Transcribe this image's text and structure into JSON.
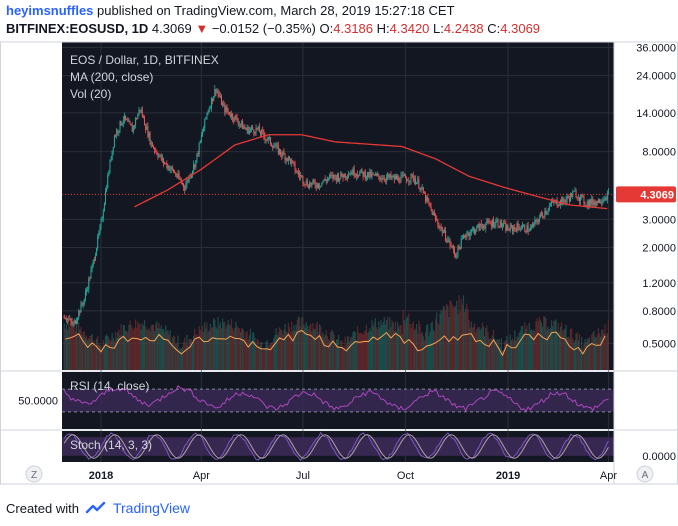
{
  "header": {
    "user": "heyimsnuffles",
    "published_text": "published on TradingView.com, March 28, 2019 15:27:18 CET",
    "symbol": "BITFINEX:EOSUSD, 1D",
    "last": "4.3069",
    "arrow": "▼",
    "change": "−0.0152 (−0.35%)",
    "o_label": "O:",
    "o": "4.3186",
    "h_label": "H:",
    "h": "4.3420",
    "l_label": "L:",
    "l": "4.2438",
    "c_label": "C:",
    "c": "4.3069"
  },
  "legend": {
    "title": "EOS / Dollar, 1D, BITFINEX",
    "ma": "MA (200, close)",
    "vol": "Vol (20)",
    "rsi": "RSI (14, close)",
    "stoch": "Stoch (14, 3, 3)"
  },
  "footer": {
    "created_with": "Created with",
    "brand": "TradingView"
  },
  "chart_data": {
    "type": "candlestick",
    "scale": "log",
    "price_ticks": [
      "36.0000",
      "24.0000",
      "14.0000",
      "8.0000",
      "4.3069",
      "3.0000",
      "2.0000",
      "1.2000",
      "0.8000",
      "0.5000"
    ],
    "price_tick_values": [
      36,
      24,
      14,
      8,
      3,
      2,
      1.2,
      0.8,
      0.5
    ],
    "last_price": 4.3069,
    "last_price_label": "4.3069",
    "x_labels": [
      "2018",
      "Apr",
      "Jul",
      "Oct",
      "2019",
      "Apr"
    ],
    "x_label_bold": [
      true,
      false,
      false,
      false,
      true,
      false
    ],
    "x_label_day": [
      0,
      90,
      181,
      273,
      365,
      455
    ],
    "x_range_days": [
      -35,
      460
    ],
    "price_anchors": [
      [
        -33,
        0.75
      ],
      [
        -25,
        0.65
      ],
      [
        -15,
        0.95
      ],
      [
        -8,
        1.5
      ],
      [
        0,
        2.8
      ],
      [
        5,
        5
      ],
      [
        12,
        10
      ],
      [
        20,
        13
      ],
      [
        28,
        11
      ],
      [
        35,
        15
      ],
      [
        45,
        9
      ],
      [
        55,
        7
      ],
      [
        65,
        6
      ],
      [
        75,
        4.8
      ],
      [
        85,
        7
      ],
      [
        95,
        14
      ],
      [
        103,
        20
      ],
      [
        110,
        15
      ],
      [
        120,
        13
      ],
      [
        130,
        11
      ],
      [
        140,
        11
      ],
      [
        150,
        9.5
      ],
      [
        160,
        8
      ],
      [
        170,
        7
      ],
      [
        175,
        6
      ],
      [
        185,
        5
      ],
      [
        195,
        5
      ],
      [
        205,
        5.5
      ],
      [
        215,
        5.6
      ],
      [
        225,
        6
      ],
      [
        235,
        5.8
      ],
      [
        245,
        5.6
      ],
      [
        255,
        5.5
      ],
      [
        265,
        5.4
      ],
      [
        280,
        5.5
      ],
      [
        285,
        5
      ],
      [
        300,
        3
      ],
      [
        310,
        2.3
      ],
      [
        318,
        1.8
      ],
      [
        326,
        2.4
      ],
      [
        335,
        2.6
      ],
      [
        345,
        2.8
      ],
      [
        355,
        2.9
      ],
      [
        365,
        2.6
      ],
      [
        375,
        2.7
      ],
      [
        385,
        2.6
      ],
      [
        395,
        3.2
      ],
      [
        405,
        3.8
      ],
      [
        415,
        3.9
      ],
      [
        425,
        4.4
      ],
      [
        435,
        3.8
      ],
      [
        445,
        3.9
      ],
      [
        455,
        4.3
      ]
    ],
    "ma200_anchors": [
      [
        30,
        3.6
      ],
      [
        60,
        4.6
      ],
      [
        90,
        6.2
      ],
      [
        120,
        8.8
      ],
      [
        150,
        10.2
      ],
      [
        180,
        10.2
      ],
      [
        210,
        9.2
      ],
      [
        240,
        8.9
      ],
      [
        270,
        8.6
      ],
      [
        300,
        7.2
      ],
      [
        330,
        5.6
      ],
      [
        360,
        4.8
      ],
      [
        390,
        4.2
      ],
      [
        420,
        3.7
      ],
      [
        455,
        3.5
      ]
    ],
    "rsi_level": "50.0000",
    "rsi_bands": [
      70,
      30
    ],
    "stoch_level": "0.0000",
    "stoch_bands": [
      80,
      20
    ]
  },
  "colors": {
    "background": "#131722",
    "grid": "#2a2e39",
    "up": "#26a69a",
    "down": "#ef5350",
    "ma": "#e53935",
    "vol_line": "#f5a356",
    "rsi": "#ab47bc",
    "stoch_k": "#7e57c2",
    "stoch_d": "#b0a0a0",
    "band_fill": "#3b2a57",
    "axis_text": "#131722",
    "last_price_bg": "#e53935"
  }
}
